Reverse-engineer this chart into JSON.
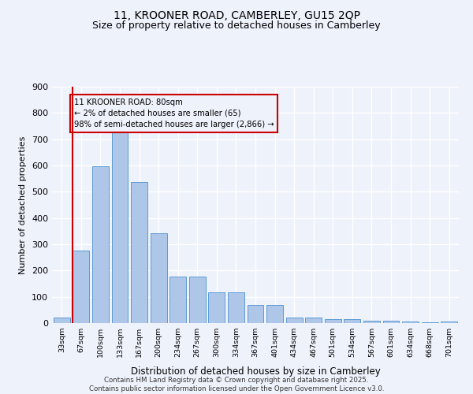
{
  "title1": "11, KROONER ROAD, CAMBERLEY, GU15 2QP",
  "title2": "Size of property relative to detached houses in Camberley",
  "xlabel": "Distribution of detached houses by size in Camberley",
  "ylabel": "Number of detached properties",
  "categories": [
    "33sqm",
    "67sqm",
    "100sqm",
    "133sqm",
    "167sqm",
    "200sqm",
    "234sqm",
    "267sqm",
    "300sqm",
    "334sqm",
    "367sqm",
    "401sqm",
    "434sqm",
    "467sqm",
    "501sqm",
    "534sqm",
    "567sqm",
    "601sqm",
    "634sqm",
    "668sqm",
    "701sqm"
  ],
  "values": [
    20,
    275,
    598,
    748,
    537,
    343,
    178,
    178,
    118,
    118,
    68,
    68,
    22,
    22,
    14,
    14,
    8,
    8,
    5,
    2,
    6
  ],
  "bar_color": "#aec6e8",
  "bar_edge_color": "#5b9bd5",
  "annotation_box_text": "11 KROONER ROAD: 80sqm\n← 2% of detached houses are smaller (65)\n98% of semi-detached houses are larger (2,866) →",
  "vline_color": "#cc0000",
  "vline_x": 1.5,
  "box_edge_color": "#cc0000",
  "ylim": [
    0,
    900
  ],
  "yticks": [
    0,
    100,
    200,
    300,
    400,
    500,
    600,
    700,
    800,
    900
  ],
  "footer_line1": "Contains HM Land Registry data © Crown copyright and database right 2025.",
  "footer_line2": "Contains public sector information licensed under the Open Government Licence v3.0.",
  "bg_color": "#eef2fb",
  "grid_color": "#ffffff",
  "title1_fontsize": 10,
  "title2_fontsize": 9
}
